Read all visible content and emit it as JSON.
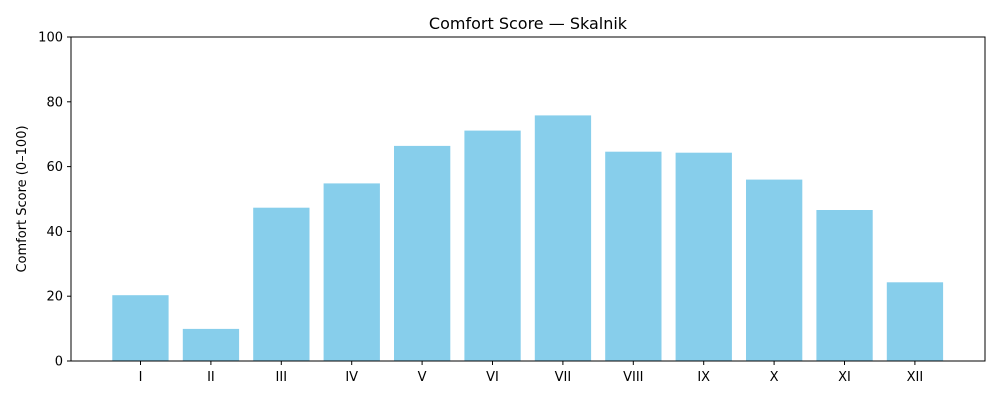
{
  "chart_data": {
    "type": "bar",
    "title": "Comfort Score — Skalnik",
    "xlabel": "",
    "ylabel": "Comfort Score (0–100)",
    "categories": [
      "I",
      "II",
      "III",
      "IV",
      "V",
      "VI",
      "VII",
      "VIII",
      "IX",
      "X",
      "XI",
      "XII"
    ],
    "values": [
      20.3,
      9.9,
      47.3,
      54.8,
      66.4,
      71.1,
      75.8,
      64.6,
      64.3,
      56.0,
      46.6,
      24.3
    ],
    "ylim": [
      0,
      100
    ],
    "yticks": [
      0,
      20,
      40,
      60,
      80,
      100
    ],
    "grid": false,
    "bar_color": "#87CEEB"
  }
}
